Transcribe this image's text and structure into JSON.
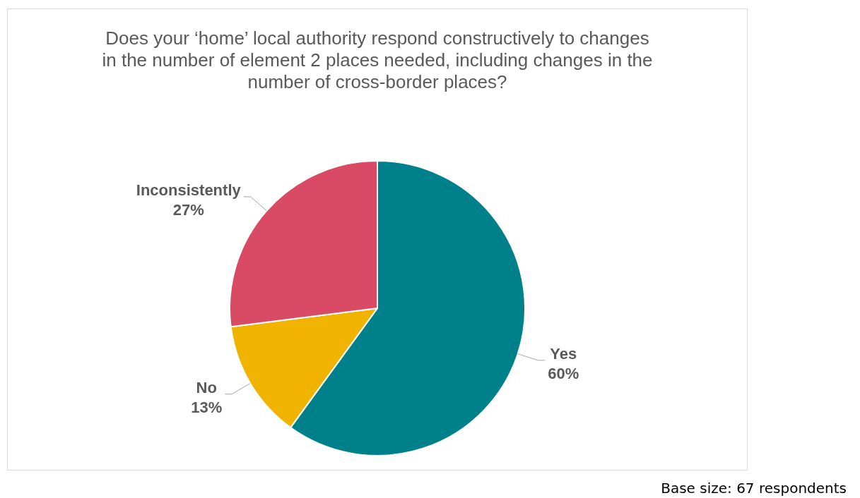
{
  "chart_data": {
    "type": "pie",
    "title": "Does your ‘home’ local authority respond constructively to changes in the number of element 2 places needed, including changes in the number of cross-border places?",
    "categories": [
      "Yes",
      "No",
      "Inconsistently"
    ],
    "values": [
      60,
      13,
      27
    ],
    "colors": [
      "#00808a",
      "#f0b400",
      "#d94a64"
    ],
    "value_labels": [
      "60%",
      "13%",
      "27%"
    ],
    "legend": false,
    "annotations": [
      "Base size: 67 respondents"
    ]
  }
}
